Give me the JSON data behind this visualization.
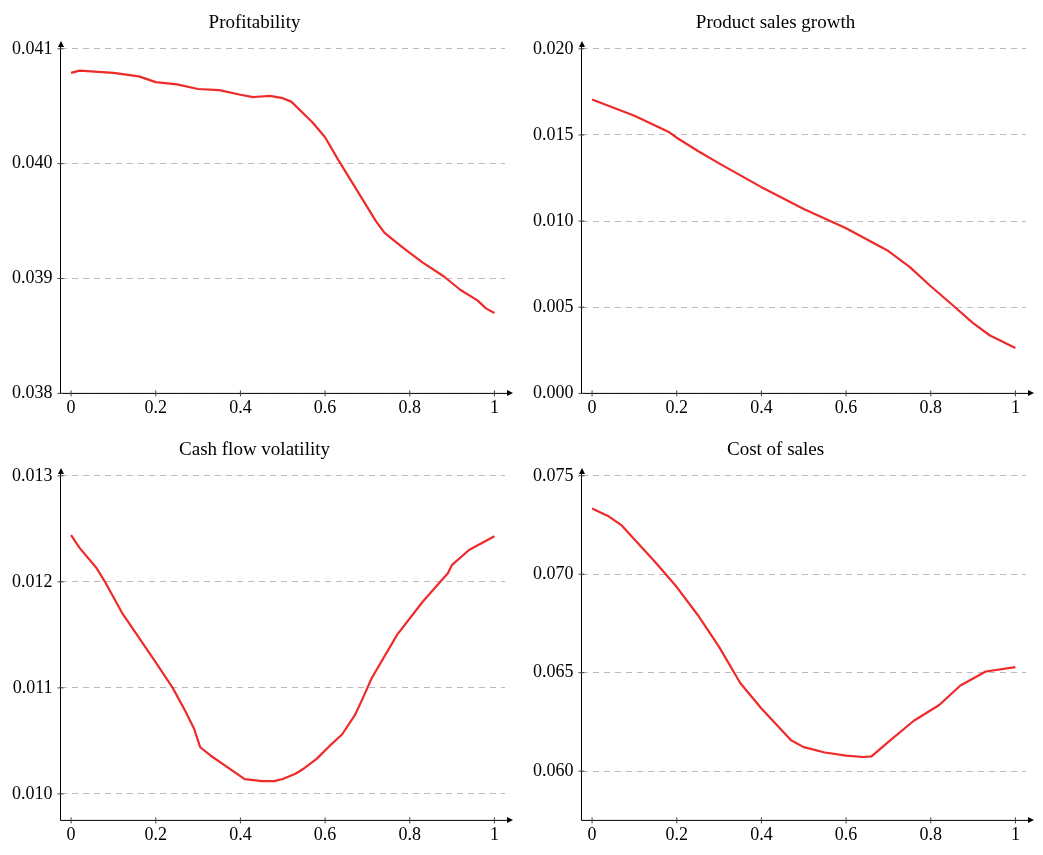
{
  "chart_data": [
    {
      "type": "line",
      "title": "Profitability",
      "color": "#ee2a2a",
      "grid": "y",
      "xlim": [
        -0.025,
        1.025
      ],
      "xticks": [
        0,
        0.2,
        0.4,
        0.6,
        0.8,
        1
      ],
      "ylim": [
        0.038,
        0.041
      ],
      "yticks": [
        0.038,
        0.039,
        {
          "value": 0.04,
          "label": "0.040"
        },
        0.041
      ],
      "x": [
        0,
        0.02,
        0.1,
        0.16,
        0.2,
        0.25,
        0.3,
        0.35,
        0.4,
        0.43,
        0.47,
        0.5,
        0.52,
        0.57,
        0.6,
        0.63,
        0.67,
        0.72,
        0.74,
        0.78,
        0.83,
        0.88,
        0.92,
        0.96,
        0.98,
        1
      ],
      "values": [
        0.04079,
        0.04081,
        0.04079,
        0.04076,
        0.04071,
        0.04069,
        0.04065,
        0.04064,
        0.0406,
        0.04058,
        0.04059,
        0.04057,
        0.04054,
        0.04036,
        0.04023,
        0.04004,
        0.0398,
        0.0395,
        0.0394,
        0.03928,
        0.03914,
        0.03902,
        0.0389,
        0.03881,
        0.03874,
        0.0387
      ]
    },
    {
      "type": "line",
      "title": "Product sales growth",
      "color": "#ee2a2a",
      "grid": "y",
      "xlim": [
        -0.025,
        1.025
      ],
      "xticks": [
        0,
        0.2,
        0.4,
        0.6,
        0.8,
        1
      ],
      "ylim": [
        0,
        0.02
      ],
      "yticks": [
        {
          "value": 0,
          "label": "0.000"
        },
        0.005,
        {
          "value": 0.01,
          "label": "0.010"
        },
        0.015,
        {
          "value": 0.02,
          "label": "0.020"
        }
      ],
      "x": [
        0,
        0.1,
        0.18,
        0.2,
        0.25,
        0.3,
        0.4,
        0.5,
        0.6,
        0.7,
        0.75,
        0.8,
        0.85,
        0.9,
        0.94,
        1
      ],
      "values": [
        0.01706,
        0.01611,
        0.01519,
        0.01484,
        0.01407,
        0.01335,
        0.01197,
        0.0107,
        0.00958,
        0.00826,
        0.00734,
        0.00622,
        0.00516,
        0.00408,
        0.00336,
        0.00263
      ]
    },
    {
      "type": "line",
      "title": "Cash flow volatility",
      "color": "#ee2a2a",
      "grid": "y",
      "xlim": [
        -0.025,
        1.025
      ],
      "xticks": [
        0,
        0.2,
        0.4,
        0.6,
        0.8,
        1
      ],
      "ylim": [
        0.00975,
        0.013
      ],
      "yticks": [
        {
          "value": 0.01,
          "label": "0.010"
        },
        0.011,
        0.012,
        0.013
      ],
      "x": [
        0,
        0.02,
        0.06,
        0.08,
        0.12,
        0.2,
        0.24,
        0.27,
        0.29,
        0.305,
        0.33,
        0.41,
        0.45,
        0.48,
        0.5,
        0.53,
        0.55,
        0.58,
        0.61,
        0.64,
        0.67,
        0.69,
        0.71,
        0.77,
        0.83,
        0.89,
        0.9,
        0.94,
        1
      ],
      "values": [
        0.01244,
        0.01232,
        0.01213,
        0.012,
        0.01171,
        0.01124,
        0.011,
        0.01078,
        0.01062,
        0.01044,
        0.01036,
        0.01014,
        0.01012,
        0.01012,
        0.01014,
        0.01019,
        0.01024,
        0.01033,
        0.01045,
        0.01056,
        0.01074,
        0.01091,
        0.01109,
        0.0115,
        0.01181,
        0.01208,
        0.01216,
        0.0123,
        0.01243
      ]
    },
    {
      "type": "line",
      "title": "Cost of sales",
      "color": "#ee2a2a",
      "grid": "y",
      "xlim": [
        -0.025,
        1.025
      ],
      "xticks": [
        0,
        0.2,
        0.4,
        0.6,
        0.8,
        1
      ],
      "ylim": [
        0.0575,
        0.075
      ],
      "yticks": [
        {
          "value": 0.06,
          "label": "0.060"
        },
        0.065,
        {
          "value": 0.07,
          "label": "0.070"
        },
        0.075
      ],
      "x": [
        0,
        0.04,
        0.07,
        0.15,
        0.2,
        0.25,
        0.3,
        0.35,
        0.4,
        0.47,
        0.5,
        0.55,
        0.6,
        0.64,
        0.66,
        0.7,
        0.76,
        0.82,
        0.87,
        0.93,
        1
      ],
      "values": [
        0.07334,
        0.07293,
        0.07248,
        0.0706,
        0.06935,
        0.06792,
        0.06631,
        0.06448,
        0.06318,
        0.06157,
        0.06122,
        0.06095,
        0.06079,
        0.06072,
        0.06075,
        0.06149,
        0.06256,
        0.06336,
        0.06435,
        0.06506,
        0.06528
      ]
    }
  ]
}
